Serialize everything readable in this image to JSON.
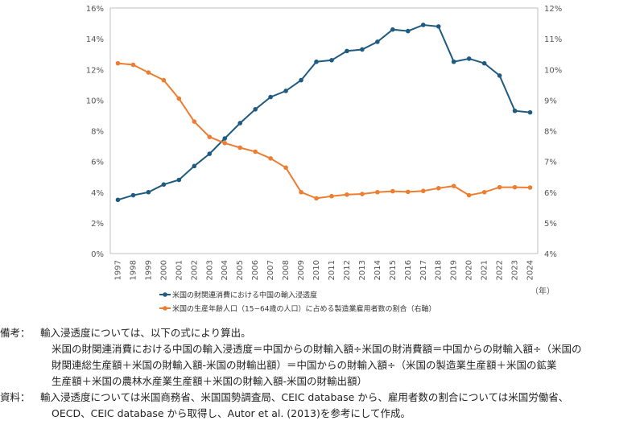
{
  "chart_data": {
    "type": "line",
    "categories": [
      "1997",
      "1998",
      "1999",
      "2000",
      "2001",
      "2002",
      "2003",
      "2004",
      "2005",
      "2006",
      "2007",
      "2008",
      "2009",
      "2010",
      "2011",
      "2012",
      "2013",
      "2014",
      "2015",
      "2016",
      "2017",
      "2018",
      "2019",
      "2020",
      "2021",
      "2022",
      "2023",
      "2024"
    ],
    "series": [
      {
        "name": "米国の財関連消費における中国の輸入浸透度",
        "axis": "left",
        "color": "#1f5b80",
        "values": [
          3.5,
          3.8,
          4.0,
          4.5,
          4.8,
          5.7,
          6.5,
          7.5,
          8.5,
          9.4,
          10.2,
          10.6,
          11.3,
          12.5,
          12.6,
          13.2,
          13.3,
          13.8,
          14.6,
          14.5,
          14.9,
          14.8,
          12.5,
          12.7,
          12.4,
          11.6,
          9.3,
          9.2
        ]
      },
      {
        "name": "米国の生産年齢人口（15~64歳の人口）に占める製造業雇用者数の割合（右軸）",
        "axis": "right",
        "color": "#ed7d31",
        "values": [
          10.2,
          10.15,
          9.9,
          9.65,
          9.05,
          8.3,
          7.8,
          7.6,
          7.45,
          7.32,
          7.1,
          6.8,
          6.0,
          5.8,
          5.87,
          5.92,
          5.94,
          6.0,
          6.03,
          6.01,
          6.04,
          6.13,
          6.2,
          5.9,
          6.0,
          6.16,
          6.16,
          6.15
        ]
      }
    ],
    "y_left": {
      "min": 0,
      "max": 16,
      "step": 2,
      "unit": "%"
    },
    "y_right": {
      "min": 4,
      "max": 12,
      "step": 1,
      "unit": "%"
    },
    "x_unit": "（年）",
    "legend_position": "bottom-left"
  },
  "notes": {
    "biko_label": "備考：",
    "biko_lines": [
      "輸入浸透度については、以下の式により算出。",
      "米国の財関連消費における中国の輸入浸透度＝中国からの財輸入額÷米国の財消費額＝中国からの財輸入額÷（米国の",
      "財関連総生産額＋米国の財輸入額-米国の財輸出額）＝中国からの財輸入額÷（米国の製造業生産額＋米国の鉱業",
      "生産額＋米国の農林水産業生産額＋米国の財輸入額-米国の財輸出額）"
    ],
    "shiryo_label": "資料：",
    "shiryo_lines": [
      "輸入浸透度については米国商務省、米国国勢調査局、CEIC database から、雇用者数の割合については米国労働省、",
      "OECD、CEIC database から取得し、Autor et al. (2013)を参考にして作成。"
    ]
  }
}
